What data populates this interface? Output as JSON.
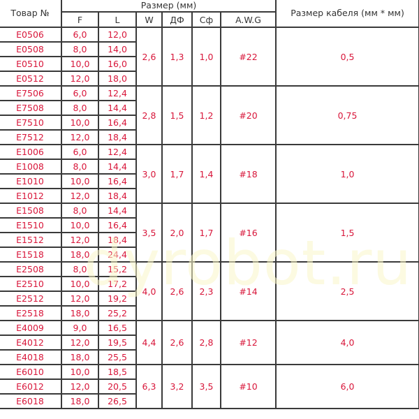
{
  "headers": {
    "item": "Товар №",
    "size": "Размер (мм)",
    "F": "F",
    "L": "L",
    "W": "W",
    "DF": "ДФ",
    "Cf": "Сф",
    "AWG": "A.W.G",
    "cable": "Размер кабеля (мм * мм)"
  },
  "watermark": "dyrobot.ru",
  "text_color": "#d8163a",
  "groups": [
    {
      "W": "2,6",
      "DF": "1,3",
      "Cf": "1,0",
      "AWG": "#22",
      "cable": "0,5",
      "items": [
        [
          "E0506",
          "6,0",
          "12,0"
        ],
        [
          "E0508",
          "8,0",
          "14,0"
        ],
        [
          "E0510",
          "10,0",
          "16,0"
        ],
        [
          "E0512",
          "12,0",
          "18,0"
        ]
      ]
    },
    {
      "W": "2,8",
      "DF": "1,5",
      "Cf": "1,2",
      "AWG": "#20",
      "cable": "0,75",
      "items": [
        [
          "E7506",
          "6,0",
          "12,4"
        ],
        [
          "E7508",
          "8,0",
          "14,4"
        ],
        [
          "E7510",
          "10,0",
          "16,4"
        ],
        [
          "E7512",
          "12,0",
          "18,4"
        ]
      ]
    },
    {
      "W": "3,0",
      "DF": "1,7",
      "Cf": "1,4",
      "AWG": "#18",
      "cable": "1,0",
      "items": [
        [
          "E1006",
          "6,0",
          "12,4"
        ],
        [
          "E1008",
          "8,0",
          "14,4"
        ],
        [
          "E1010",
          "10,0",
          "16,4"
        ],
        [
          "E1012",
          "12,0",
          "18,4"
        ]
      ]
    },
    {
      "W": "3,5",
      "DF": "2,0",
      "Cf": "1,7",
      "AWG": "#16",
      "cable": "1,5",
      "items": [
        [
          "E1508",
          "8,0",
          "14,4"
        ],
        [
          "E1510",
          "10,0",
          "16,4"
        ],
        [
          "E1512",
          "12,0",
          "18,4"
        ],
        [
          "E1518",
          "18,0",
          "24,4"
        ]
      ]
    },
    {
      "W": "4,0",
      "DF": "2,6",
      "Cf": "2,3",
      "AWG": "#14",
      "cable": "2,5",
      "items": [
        [
          "E2508",
          "8,0",
          "15,2"
        ],
        [
          "E2510",
          "10,0",
          "17,2"
        ],
        [
          "E2512",
          "12,0",
          "19,2"
        ],
        [
          "E2518",
          "18,0",
          "25,2"
        ]
      ]
    },
    {
      "W": "4,4",
      "DF": "2,6",
      "Cf": "2,8",
      "AWG": "#12",
      "cable": "4,0",
      "items": [
        [
          "E4009",
          "9,0",
          "16,5"
        ],
        [
          "E4012",
          "12,0",
          "19,5"
        ],
        [
          "E4018",
          "18,0",
          "25,5"
        ]
      ]
    },
    {
      "W": "6,3",
      "DF": "3,2",
      "Cf": "3,5",
      "AWG": "#10",
      "cable": "6,0",
      "items": [
        [
          "E6010",
          "10,0",
          "18,5"
        ],
        [
          "E6012",
          "12,0",
          "20,5"
        ],
        [
          "E6018",
          "18,0",
          "26,5"
        ]
      ]
    }
  ]
}
